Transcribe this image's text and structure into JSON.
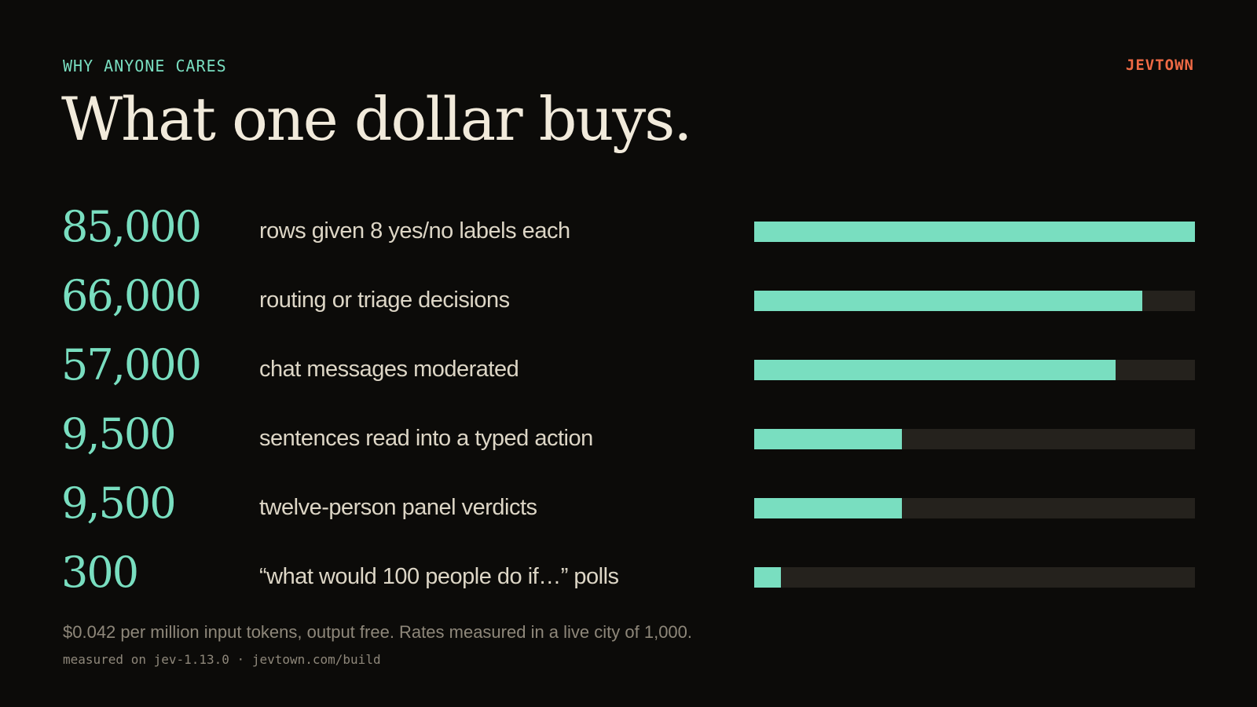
{
  "header": {
    "eyebrow": "WHY ANYONE CARES",
    "brand": "JEVTOWN",
    "title": "What one dollar buys."
  },
  "chart_data": {
    "type": "bar",
    "orientation": "horizontal",
    "categories": [
      "rows given 8 yes/no labels each",
      "routing or triage decisions",
      "chat messages moderated",
      "sentences read into a typed action",
      "twelve-person panel verdicts",
      "“what would 100 people do if…” polls"
    ],
    "values": [
      85000,
      66000,
      57000,
      9500,
      9500,
      300
    ],
    "value_labels": [
      "85,000",
      "66,000",
      "57,000",
      "9,500",
      "9,500",
      "300"
    ],
    "bar_fill_fraction": [
      1.0,
      0.88,
      0.82,
      0.335,
      0.335,
      0.06
    ],
    "bar_color": "#79dec0",
    "track_color": "#25221d"
  },
  "footer": {
    "note": "$0.042 per million input tokens, output free. Rates measured in a live city of 1,000.",
    "meta": "measured on jev-1.13.0 · jevtown.com/build"
  },
  "colors": {
    "background": "#0c0b09",
    "accent": "#79dec0",
    "brand": "#ef6a45",
    "title": "#f1eadb",
    "label": "#ddd6c6",
    "muted": "#8e877a"
  }
}
